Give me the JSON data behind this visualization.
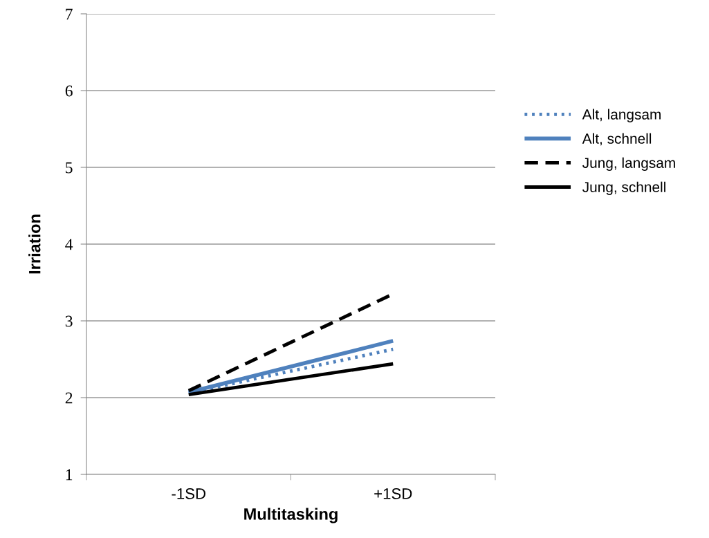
{
  "chart_data": {
    "type": "line",
    "xlabel": "Multitasking",
    "ylabel": "Irriation",
    "categories": [
      "-1SD",
      "+1SD"
    ],
    "series": [
      {
        "name": "Alt, langsam",
        "color": "#4f81bd",
        "values": [
          2.06,
          2.63
        ],
        "line_style": "dotted"
      },
      {
        "name": "Alt, schnell",
        "color": "#4f81bd",
        "values": [
          2.07,
          2.74
        ],
        "line_style": "solid"
      },
      {
        "name": "Jung, langsam",
        "color": "#000000",
        "values": [
          2.09,
          3.35
        ],
        "line_style": "dashed"
      },
      {
        "name": "Jung, schnell",
        "color": "#000000",
        "values": [
          2.04,
          2.44
        ],
        "line_style": "solid"
      }
    ],
    "ylim": [
      1,
      7
    ],
    "yticks": [
      1,
      2,
      3,
      4,
      5,
      6,
      7
    ],
    "grid": "y",
    "legend": "right",
    "marker": "none"
  }
}
